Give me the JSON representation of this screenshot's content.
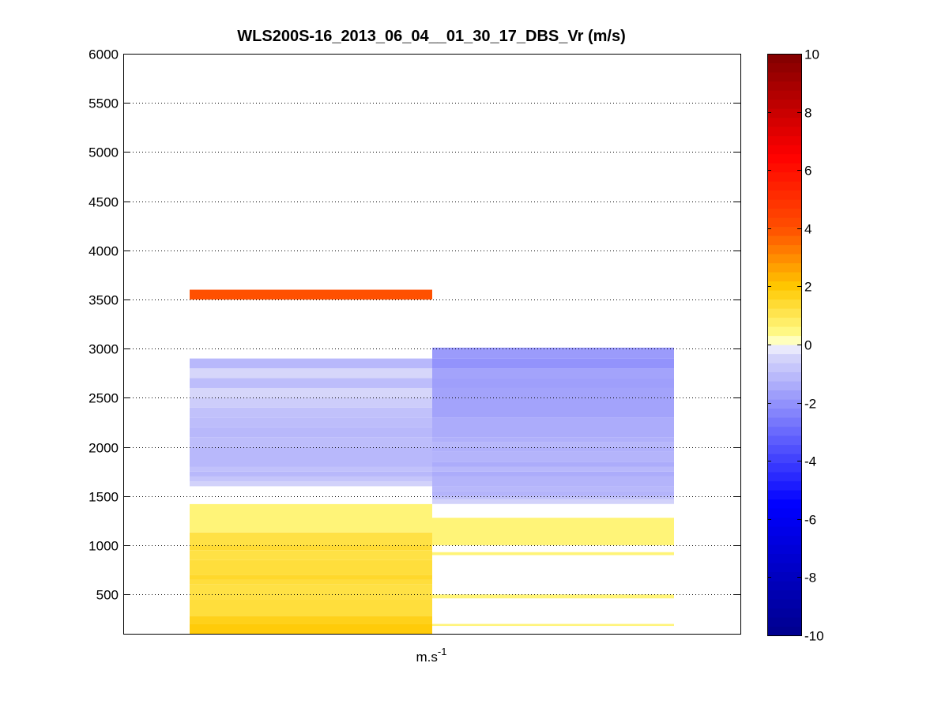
{
  "chart_data": {
    "type": "heatmap",
    "title": "WLS200S-16_2013_06_04__01_30_17_DBS_Vr (m/s)",
    "xlabel_base": "m.s",
    "xlabel_sup": "-1",
    "ylabel": "",
    "ylim": [
      100,
      6000
    ],
    "yticks": [
      500,
      1000,
      1500,
      2000,
      2500,
      3000,
      3500,
      4000,
      4500,
      5000,
      5500,
      6000
    ],
    "grid": true,
    "colorbar": {
      "range": [
        -10,
        10
      ],
      "ticks": [
        -10,
        -8,
        -6,
        -4,
        -2,
        0,
        2,
        4,
        6,
        8,
        10
      ],
      "colors": {
        "neg_far": "#00008c",
        "neg_mid": "#0000ff",
        "neg_near": "#dcdcfa",
        "zero": "#ffffff",
        "pos_near": "#ffff96",
        "pos_mid": "#ffc800",
        "pos_mid2": "#ff5000",
        "pos_far_mid": "#ff0000",
        "pos_far": "#800000"
      }
    },
    "columns": [
      {
        "cells": [
          {
            "y0": 100,
            "y1": 200,
            "v": 1.9
          },
          {
            "y0": 200,
            "y1": 280,
            "v": 1.7
          },
          {
            "y0": 280,
            "y1": 450,
            "v": 1.3
          },
          {
            "y0": 450,
            "y1": 600,
            "v": 1.2
          },
          {
            "y0": 600,
            "y1": 650,
            "v": 1.3
          },
          {
            "y0": 650,
            "y1": 700,
            "v": 1.5
          },
          {
            "y0": 700,
            "y1": 850,
            "v": 1.3
          },
          {
            "y0": 850,
            "y1": 950,
            "v": 1.2
          },
          {
            "y0": 950,
            "y1": 1000,
            "v": 1.4
          },
          {
            "y0": 1000,
            "y1": 1130,
            "v": 1.2
          },
          {
            "y0": 1130,
            "y1": 1420,
            "v": 0.6
          },
          {
            "y0": 1420,
            "y1": 1600,
            "v": 0.0
          },
          {
            "y0": 1600,
            "y1": 1650,
            "v": -0.5
          },
          {
            "y0": 1650,
            "y1": 1700,
            "v": -0.8
          },
          {
            "y0": 1700,
            "y1": 1750,
            "v": -1.1
          },
          {
            "y0": 1750,
            "y1": 1800,
            "v": -0.9
          },
          {
            "y0": 1800,
            "y1": 2000,
            "v": -1.1
          },
          {
            "y0": 2000,
            "y1": 2100,
            "v": -1.0
          },
          {
            "y0": 2100,
            "y1": 2200,
            "v": -1.1
          },
          {
            "y0": 2200,
            "y1": 2300,
            "v": -1.0
          },
          {
            "y0": 2300,
            "y1": 2400,
            "v": -0.9
          },
          {
            "y0": 2400,
            "y1": 2500,
            "v": -0.6
          },
          {
            "y0": 2500,
            "y1": 2600,
            "v": -0.4
          },
          {
            "y0": 2600,
            "y1": 2700,
            "v": -1.0
          },
          {
            "y0": 2700,
            "y1": 2800,
            "v": -0.4
          },
          {
            "y0": 2800,
            "y1": 2900,
            "v": -1.1
          },
          {
            "y0": 3500,
            "y1": 3600,
            "v": 4.0
          }
        ]
      },
      {
        "cells": [
          {
            "y0": 180,
            "y1": 200,
            "v": 0.6
          },
          {
            "y0": 460,
            "y1": 500,
            "v": 0.6
          },
          {
            "y0": 900,
            "y1": 930,
            "v": 0.6
          },
          {
            "y0": 1000,
            "y1": 1280,
            "v": 0.6
          },
          {
            "y0": 1420,
            "y1": 1470,
            "v": -0.5
          },
          {
            "y0": 1470,
            "y1": 1500,
            "v": -0.9
          },
          {
            "y0": 1500,
            "y1": 1550,
            "v": -1.2
          },
          {
            "y0": 1550,
            "y1": 1600,
            "v": -1.1
          },
          {
            "y0": 1600,
            "y1": 1700,
            "v": -1.2
          },
          {
            "y0": 1700,
            "y1": 1750,
            "v": -1.4
          },
          {
            "y0": 1750,
            "y1": 1800,
            "v": -1.1
          },
          {
            "y0": 1800,
            "y1": 1850,
            "v": -1.4
          },
          {
            "y0": 1850,
            "y1": 1950,
            "v": -1.2
          },
          {
            "y0": 1950,
            "y1": 2000,
            "v": -1.3
          },
          {
            "y0": 2000,
            "y1": 2050,
            "v": -1.1
          },
          {
            "y0": 2050,
            "y1": 2100,
            "v": -1.3
          },
          {
            "y0": 2100,
            "y1": 2300,
            "v": -1.4
          },
          {
            "y0": 2300,
            "y1": 2500,
            "v": -1.6
          },
          {
            "y0": 2500,
            "y1": 2600,
            "v": -1.6
          },
          {
            "y0": 2600,
            "y1": 2700,
            "v": -1.7
          },
          {
            "y0": 2700,
            "y1": 2800,
            "v": -1.6
          },
          {
            "y0": 2800,
            "y1": 2900,
            "v": -2.0
          },
          {
            "y0": 2900,
            "y1": 3000,
            "v": -1.8
          },
          {
            "y0": 3000,
            "y1": 3010,
            "v": -2.2
          }
        ]
      }
    ]
  }
}
